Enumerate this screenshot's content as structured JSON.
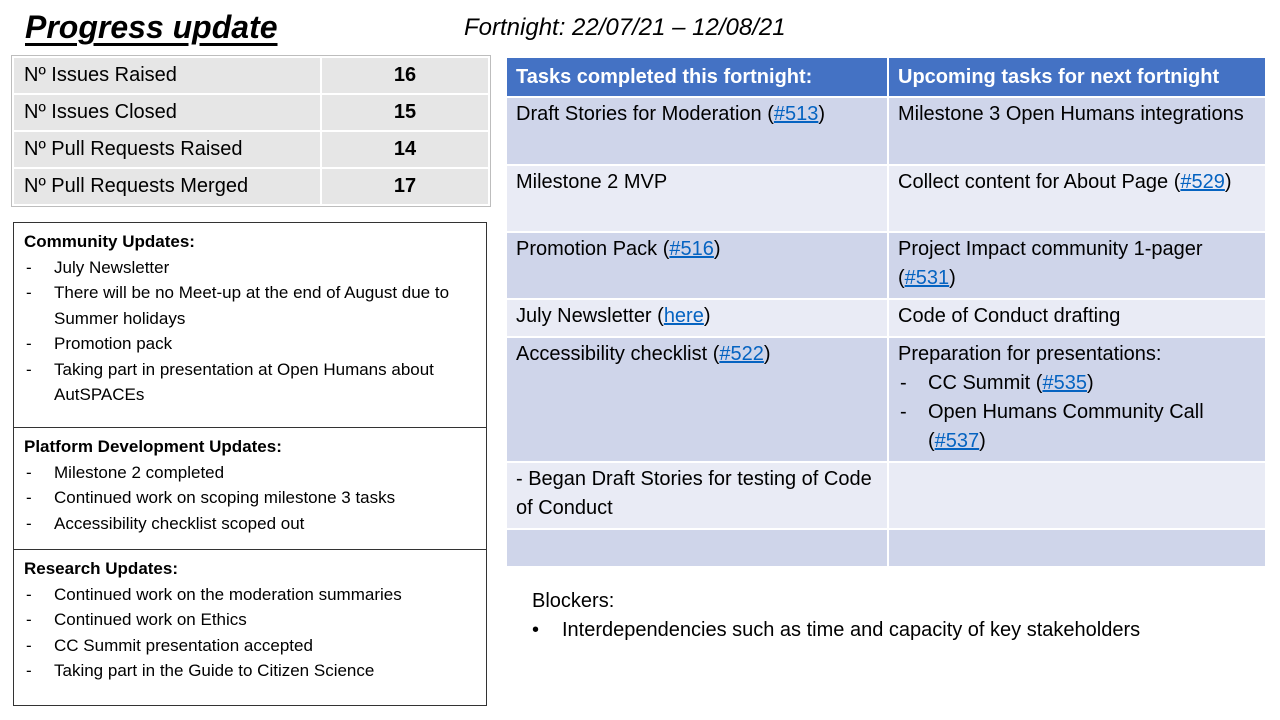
{
  "title": "Progress update",
  "fortnight": "Fortnight: 22/07/21 – 12/08/21",
  "stats": [
    {
      "label": "Nº Issues Raised",
      "value": "16"
    },
    {
      "label": "Nº Issues Closed",
      "value": "15"
    },
    {
      "label": "Nº Pull Requests Raised",
      "value": "14"
    },
    {
      "label": "Nº Pull Requests Merged",
      "value": "17"
    }
  ],
  "community": {
    "heading": "Community  Updates:",
    "items": [
      "July Newsletter",
      "There will be no Meet-up at the end of August due to Summer holidays",
      "Promotion pack",
      "Taking part in presentation at Open Humans about AutSPACEs"
    ]
  },
  "platform": {
    "heading": "Platform Development Updates:",
    "items": [
      "Milestone 2 completed",
      "Continued work on scoping milestone 3 tasks",
      "Accessibility checklist scoped out"
    ]
  },
  "research": {
    "heading": "Research Updates:",
    "items": [
      "Continued work on the moderation summaries",
      "Continued work on Ethics",
      "CC Summit presentation  accepted",
      "Taking part in the Guide to Citizen Science"
    ]
  },
  "tasks": {
    "col_completed": "Tasks completed this fortnight:",
    "col_upcoming": "Upcoming tasks for next fortnight",
    "rows": [
      {
        "done_text": "Draft Stories for Moderation (",
        "done_link": "#513",
        "done_tail": ")",
        "next_text": "Milestone 3 Open Humans integrations"
      },
      {
        "done_text": "Milestone 2 MVP",
        "next_text": "Collect content for About Page (",
        "next_link": "#529",
        "next_tail": ")"
      },
      {
        "done_text": "Promotion Pack (",
        "done_link": "#516",
        "done_tail": ")",
        "next_text": "Project Impact community 1-pager (",
        "next_link": "#531",
        "next_tail": ")"
      },
      {
        "done_text": "July Newsletter (",
        "done_link": "here",
        "done_tail": ")",
        "next_text": "Code of Conduct drafting"
      },
      {
        "done_text": "Accessibility checklist (",
        "done_link": "#522",
        "done_tail": ")",
        "next_text": "Preparation for presentations:",
        "next_sub1_text": "CC Summit (",
        "next_sub1_link": "#535",
        "next_sub1_tail": ")",
        "next_sub2_text": "Open Humans Community Call (",
        "next_sub2_link": "#537",
        "next_sub2_tail": ")"
      },
      {
        "done_text": "- Began Draft Stories for testing of Code of Conduct",
        "next_text": ""
      },
      {
        "done_text": "",
        "next_text": ""
      }
    ]
  },
  "blockers": {
    "heading": "Blockers:",
    "items": [
      "Interdependencies such as time and capacity of key stakeholders"
    ]
  }
}
